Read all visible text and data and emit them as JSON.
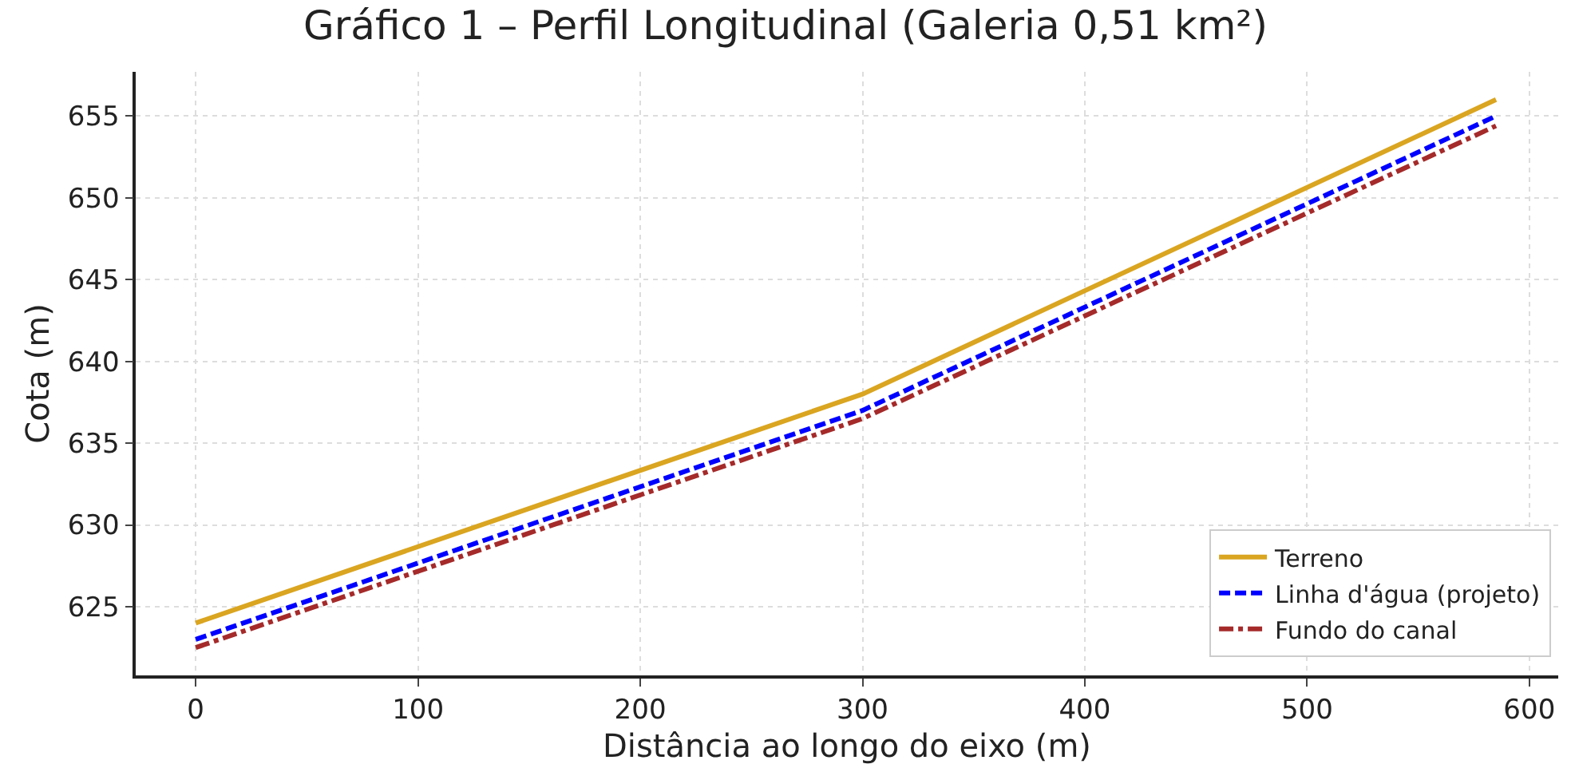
{
  "chart_data": {
    "type": "line",
    "title": "Gráfico 1 – Perfil Longitudinal (Galeria 0,51 km²)",
    "xlabel": "Distância ao longo do eixo (m)",
    "ylabel": "Cota (m)",
    "x": [
      0,
      300,
      585
    ],
    "series": [
      {
        "name": "Terreno",
        "color": "#daa520",
        "values": [
          624,
          638,
          656
        ],
        "line_style": "solid"
      },
      {
        "name": "Linha d'água (projeto)",
        "color": "#0000ff",
        "values": [
          623,
          637,
          655
        ],
        "line_style": "dashed"
      },
      {
        "name": "Fundo do canal",
        "color": "#a52a2a",
        "values": [
          622.5,
          636.5,
          654.4
        ],
        "line_style": "dashdot"
      }
    ],
    "xlim": [
      -27,
      613
    ],
    "ylim": [
      620.8,
      657.7
    ],
    "xticks": [
      0,
      100,
      200,
      300,
      400,
      500,
      600
    ],
    "yticks": [
      625,
      630,
      635,
      640,
      645,
      650,
      655
    ],
    "grid": true,
    "legend": "bottom right"
  }
}
